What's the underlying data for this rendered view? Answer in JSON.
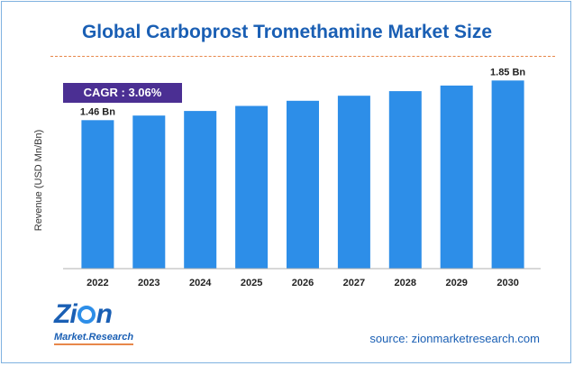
{
  "chart_data": {
    "type": "bar",
    "title": "Global Carboprost Tromethamine Market Size",
    "ylabel": "Revenue (USD Mn/Bn)",
    "xlabel": "",
    "categories": [
      "2022",
      "2023",
      "2024",
      "2025",
      "2026",
      "2027",
      "2028",
      "2029",
      "2030"
    ],
    "values": [
      1.46,
      1.505,
      1.55,
      1.6,
      1.65,
      1.7,
      1.745,
      1.8,
      1.85
    ],
    "ylim": [
      0,
      1.95
    ],
    "grid": false,
    "data_labels": {
      "0": "1.46 Bn",
      "8": "1.85 Bn"
    },
    "cagr_label": "CAGR : 3.06%"
  },
  "branding": {
    "logo_top_z": "Z",
    "logo_top_i": "i",
    "logo_top_n": "n",
    "logo_bottom": "Market.Research",
    "source": "source: zionmarketresearch.com"
  },
  "colors": {
    "bar": "#2d8ee8",
    "title": "#1a5fb4",
    "cagr_bg": "#4b2f93",
    "divider": "#e8874a"
  }
}
